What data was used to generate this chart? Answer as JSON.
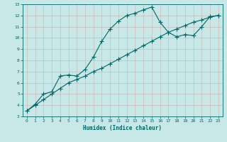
{
  "xlabel": "Humidex (Indice chaleur)",
  "bg_color": "#c8e8e8",
  "grid_color": "#b0cccc",
  "line_color": "#006666",
  "xlim": [
    -0.5,
    23.5
  ],
  "ylim": [
    3,
    13
  ],
  "xticks": [
    0,
    1,
    2,
    3,
    4,
    5,
    6,
    7,
    8,
    9,
    10,
    11,
    12,
    13,
    14,
    15,
    16,
    17,
    18,
    19,
    20,
    21,
    22,
    23
  ],
  "yticks": [
    3,
    4,
    5,
    6,
    7,
    8,
    9,
    10,
    11,
    12,
    13
  ],
  "curve1_x": [
    0,
    1,
    2,
    3,
    4,
    5,
    6,
    7,
    8,
    9,
    10,
    11,
    12,
    13,
    14,
    15,
    16,
    17,
    18,
    19,
    20,
    21,
    22,
    23
  ],
  "curve1_y": [
    3.5,
    4.1,
    5.0,
    5.2,
    6.6,
    6.7,
    6.6,
    7.2,
    8.3,
    9.7,
    10.8,
    11.5,
    12.0,
    12.2,
    12.5,
    12.75,
    11.4,
    10.5,
    10.1,
    10.3,
    10.2,
    11.0,
    11.9,
    12.0
  ],
  "curve2_x": [
    0,
    1,
    2,
    3,
    4,
    5,
    6,
    7,
    8,
    9,
    10,
    11,
    12,
    13,
    14,
    15,
    16,
    17,
    18,
    19,
    20,
    21,
    22,
    23
  ],
  "curve2_y": [
    3.5,
    4.0,
    4.5,
    5.0,
    5.5,
    6.0,
    6.3,
    6.6,
    7.0,
    7.3,
    7.7,
    8.1,
    8.5,
    8.9,
    9.3,
    9.7,
    10.1,
    10.5,
    10.8,
    11.1,
    11.4,
    11.6,
    11.85,
    12.0
  ],
  "marker_size": 2.5,
  "line_width": 0.8
}
